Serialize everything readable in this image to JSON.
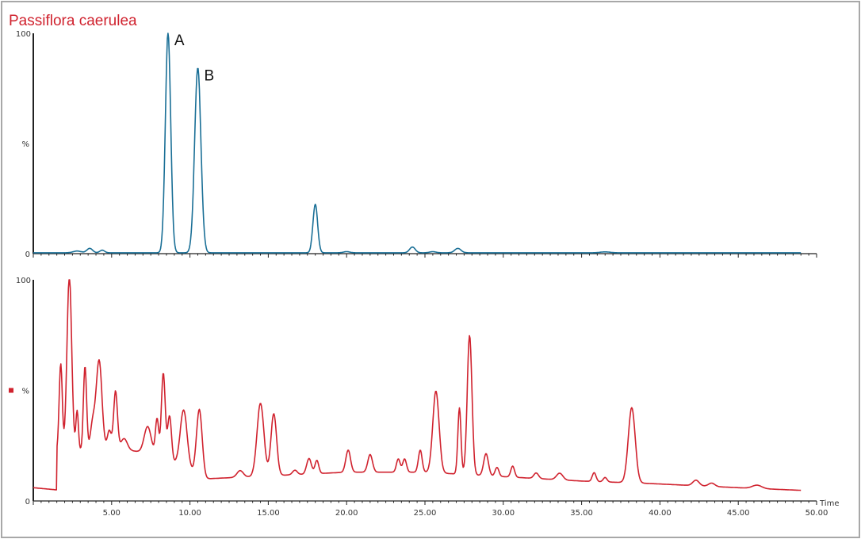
{
  "colors": {
    "top_trace": "#1a6f96",
    "bottom_trace": "#d0222e",
    "title": "#d0222e",
    "axis": "#222222",
    "frame": "#a8a8a8"
  },
  "title": "Passiflora caerulea",
  "chart_data": [
    {
      "type": "line",
      "name": "top-chromatogram",
      "y_max_label": "100",
      "y_mid_label": "%",
      "y_min_label": "0",
      "xlim": [
        0,
        50
      ],
      "ylim": [
        0,
        100
      ],
      "baseline": 0.4,
      "peaks": [
        {
          "t": 2.8,
          "h": 0.8,
          "w": 0.25
        },
        {
          "t": 3.6,
          "h": 2.0,
          "w": 0.18
        },
        {
          "t": 4.4,
          "h": 1.2,
          "w": 0.15
        },
        {
          "t": 8.6,
          "h": 100,
          "w": 0.17
        },
        {
          "t": 10.5,
          "h": 84,
          "w": 0.2
        },
        {
          "t": 18.0,
          "h": 22,
          "w": 0.15
        },
        {
          "t": 20.0,
          "h": 0.5,
          "w": 0.2
        },
        {
          "t": 24.2,
          "h": 2.6,
          "w": 0.18
        },
        {
          "t": 25.5,
          "h": 0.5,
          "w": 0.2
        },
        {
          "t": 27.1,
          "h": 2.0,
          "w": 0.2
        },
        {
          "t": 36.5,
          "h": 0.4,
          "w": 0.3
        }
      ],
      "annotations": [
        {
          "text": "A",
          "t": 8.6,
          "y": 100
        },
        {
          "text": "B",
          "t": 10.5,
          "y": 84
        }
      ]
    },
    {
      "type": "line",
      "name": "bottom-chromatogram",
      "y_max_label": "100",
      "y_mid_label": "%",
      "y_min_label": "0",
      "xlim": [
        0,
        50
      ],
      "ylim": [
        0,
        100
      ],
      "x_ticks": [
        "5.00",
        "10.00",
        "15.00",
        "20.00",
        "25.00",
        "30.00",
        "35.00",
        "40.00",
        "45.00",
        "50.00"
      ],
      "x_tick_values": [
        5,
        10,
        15,
        20,
        25,
        30,
        35,
        40,
        45,
        50
      ],
      "xlabel": "Time",
      "initial": {
        "t0": 0,
        "y0": 6,
        "t1": 1.5,
        "y1": 5
      },
      "background": [
        {
          "t": 1.6,
          "y": 22
        },
        {
          "t": 5,
          "y": 24
        },
        {
          "t": 8,
          "y": 21
        },
        {
          "t": 11,
          "y": 10
        },
        {
          "t": 14,
          "y": 11
        },
        {
          "t": 17,
          "y": 12
        },
        {
          "t": 20,
          "y": 13
        },
        {
          "t": 25,
          "y": 13
        },
        {
          "t": 30,
          "y": 11
        },
        {
          "t": 35,
          "y": 9
        },
        {
          "t": 39,
          "y": 8
        },
        {
          "t": 45,
          "y": 6
        },
        {
          "t": 50,
          "y": 4.5
        }
      ],
      "peaks": [
        {
          "t": 1.75,
          "h": 40,
          "w": 0.1
        },
        {
          "t": 2.3,
          "h": 80,
          "w": 0.15
        },
        {
          "t": 2.8,
          "h": 18,
          "w": 0.08
        },
        {
          "t": 3.3,
          "h": 38,
          "w": 0.1
        },
        {
          "t": 3.8,
          "h": 12,
          "w": 0.15
        },
        {
          "t": 4.2,
          "h": 40,
          "w": 0.18
        },
        {
          "t": 4.85,
          "h": 8,
          "w": 0.12
        },
        {
          "t": 5.25,
          "h": 26,
          "w": 0.12
        },
        {
          "t": 5.8,
          "h": 5,
          "w": 0.2
        },
        {
          "t": 7.3,
          "h": 12,
          "w": 0.22
        },
        {
          "t": 7.9,
          "h": 16,
          "w": 0.1
        },
        {
          "t": 8.3,
          "h": 38,
          "w": 0.12
        },
        {
          "t": 8.7,
          "h": 20,
          "w": 0.12
        },
        {
          "t": 9.6,
          "h": 26,
          "w": 0.22
        },
        {
          "t": 10.6,
          "h": 30,
          "w": 0.18
        },
        {
          "t": 13.2,
          "h": 3,
          "w": 0.2
        },
        {
          "t": 14.5,
          "h": 33,
          "w": 0.22
        },
        {
          "t": 15.35,
          "h": 28,
          "w": 0.18
        },
        {
          "t": 16.7,
          "h": 2,
          "w": 0.15
        },
        {
          "t": 17.6,
          "h": 7,
          "w": 0.15
        },
        {
          "t": 18.1,
          "h": 6,
          "w": 0.12
        },
        {
          "t": 20.1,
          "h": 10,
          "w": 0.15
        },
        {
          "t": 21.5,
          "h": 8,
          "w": 0.15
        },
        {
          "t": 23.3,
          "h": 6,
          "w": 0.12
        },
        {
          "t": 23.7,
          "h": 6,
          "w": 0.12
        },
        {
          "t": 24.7,
          "h": 10,
          "w": 0.12
        },
        {
          "t": 25.7,
          "h": 37,
          "w": 0.2
        },
        {
          "t": 27.2,
          "h": 30,
          "w": 0.1
        },
        {
          "t": 27.85,
          "h": 63,
          "w": 0.15
        },
        {
          "t": 28.9,
          "h": 10,
          "w": 0.15
        },
        {
          "t": 29.6,
          "h": 4,
          "w": 0.12
        },
        {
          "t": 30.6,
          "h": 5,
          "w": 0.12
        },
        {
          "t": 32.1,
          "h": 2.5,
          "w": 0.15
        },
        {
          "t": 33.6,
          "h": 3,
          "w": 0.2
        },
        {
          "t": 35.8,
          "h": 4,
          "w": 0.12
        },
        {
          "t": 36.5,
          "h": 2,
          "w": 0.12
        },
        {
          "t": 38.2,
          "h": 34,
          "w": 0.22
        },
        {
          "t": 42.3,
          "h": 2.5,
          "w": 0.2
        },
        {
          "t": 43.3,
          "h": 1.5,
          "w": 0.2
        },
        {
          "t": 46.2,
          "h": 1.5,
          "w": 0.3
        }
      ],
      "legend_marker": "square"
    }
  ]
}
